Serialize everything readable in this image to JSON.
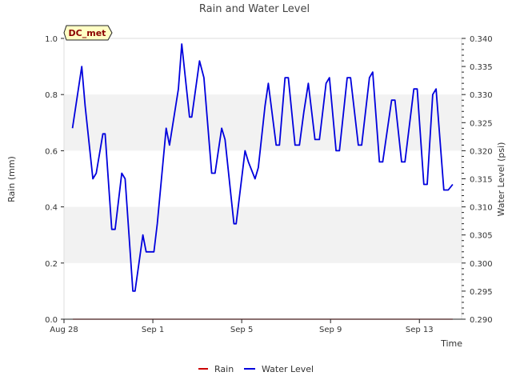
{
  "chart_data": {
    "type": "line",
    "title": "Rain and Water Level",
    "xlabel": "Time",
    "ylabel_left": "Rain (mm)",
    "ylabel_right": "Water Level (psi)",
    "badge": "DC_met",
    "x_ticks": [
      "Aug 28",
      "Sep 1",
      "Sep 5",
      "Sep 9",
      "Sep 13"
    ],
    "x_tick_days": [
      0,
      4,
      8,
      12,
      16
    ],
    "x_range_days": [
      0,
      17.9
    ],
    "ylim_left": [
      0.0,
      1.0
    ],
    "ylim_right": [
      0.29,
      0.34
    ],
    "y_left_ticks": [
      "0.0",
      "0.2",
      "0.4",
      "0.6",
      "0.8",
      "1.0"
    ],
    "y_right_ticks": [
      "0.290",
      "0.295",
      "0.300",
      "0.305",
      "0.310",
      "0.315",
      "0.320",
      "0.325",
      "0.330",
      "0.335",
      "0.340"
    ],
    "shaded_bands_left": [
      [
        0.2,
        0.4
      ],
      [
        0.6,
        0.8
      ]
    ],
    "grid": false,
    "legend_position": "bottom-center",
    "series": [
      {
        "name": "Rain",
        "axis": "left",
        "color": "#cc0000",
        "x": [
          0.4,
          17.5
        ],
        "y": [
          0.0,
          0.0
        ]
      },
      {
        "name": "Water Level",
        "axis": "right",
        "color": "#0000dd",
        "x": [
          0.38,
          0.8,
          0.95,
          1.3,
          1.45,
          1.75,
          1.85,
          2.15,
          2.3,
          2.6,
          2.75,
          3.1,
          3.2,
          3.55,
          3.7,
          4.05,
          4.2,
          4.6,
          4.75,
          5.15,
          5.3,
          5.65,
          5.75,
          6.1,
          6.3,
          6.65,
          6.8,
          7.1,
          7.25,
          7.65,
          7.75,
          8.15,
          8.3,
          8.6,
          8.75,
          9.05,
          9.2,
          9.55,
          9.7,
          9.95,
          10.1,
          10.4,
          10.6,
          10.8,
          11.0,
          11.3,
          11.5,
          11.8,
          11.95,
          12.25,
          12.4,
          12.75,
          12.9,
          13.25,
          13.4,
          13.75,
          13.9,
          14.2,
          14.35,
          14.75,
          14.9,
          15.2,
          15.35,
          15.75,
          15.9,
          16.2,
          16.35,
          16.6,
          16.75,
          17.1,
          17.3,
          17.5
        ],
        "y": [
          0.324,
          0.335,
          0.328,
          0.315,
          0.316,
          0.323,
          0.323,
          0.306,
          0.306,
          0.316,
          0.315,
          0.295,
          0.295,
          0.305,
          0.302,
          0.302,
          0.307,
          0.324,
          0.321,
          0.331,
          0.339,
          0.326,
          0.326,
          0.336,
          0.333,
          0.316,
          0.316,
          0.324,
          0.322,
          0.307,
          0.307,
          0.32,
          0.318,
          0.315,
          0.317,
          0.328,
          0.332,
          0.321,
          0.321,
          0.333,
          0.333,
          0.321,
          0.321,
          0.327,
          0.332,
          0.322,
          0.322,
          0.332,
          0.333,
          0.32,
          0.32,
          0.333,
          0.333,
          0.321,
          0.321,
          0.333,
          0.334,
          0.318,
          0.318,
          0.329,
          0.329,
          0.318,
          0.318,
          0.331,
          0.331,
          0.314,
          0.314,
          0.33,
          0.331,
          0.313,
          0.313,
          0.314
        ]
      }
    ]
  }
}
